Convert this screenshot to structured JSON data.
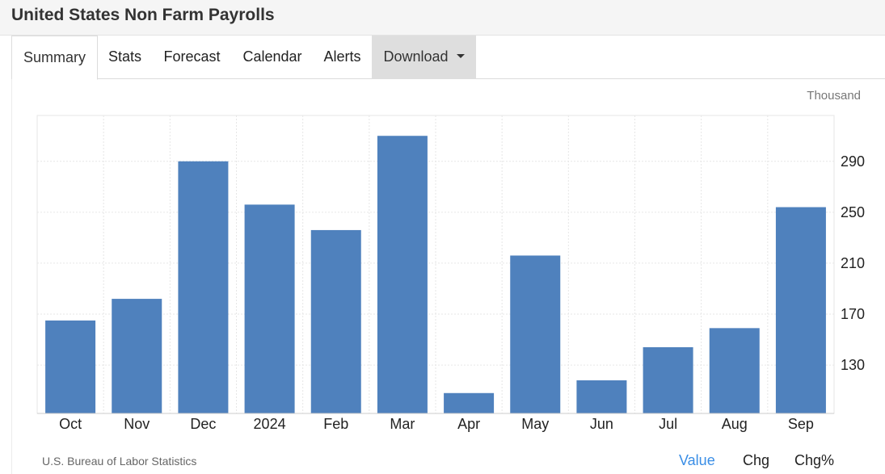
{
  "header": {
    "title": "United States Non Farm Payrolls"
  },
  "tabs": [
    {
      "label": "Summary"
    },
    {
      "label": "Stats"
    },
    {
      "label": "Forecast"
    },
    {
      "label": "Calendar"
    },
    {
      "label": "Alerts"
    },
    {
      "label": "Download"
    }
  ],
  "unit_label": "Thousand",
  "source": "U.S. Bureau of Labor Statistics",
  "toggles": [
    {
      "label": "Value",
      "selected": true
    },
    {
      "label": "Chg",
      "selected": false
    },
    {
      "label": "Chg%",
      "selected": false
    }
  ],
  "colors": {
    "bar": "#4f81bd",
    "grid": "#e6e6e6",
    "axis": "#cccccc",
    "selected_toggle": "#3a8ee6"
  },
  "chart_data": {
    "type": "bar",
    "categories": [
      "Oct",
      "Nov",
      "Dec",
      "2024",
      "Feb",
      "Mar",
      "Apr",
      "May",
      "Jun",
      "Jul",
      "Aug",
      "Sep"
    ],
    "values": [
      165,
      182,
      290,
      256,
      236,
      310,
      108,
      216,
      118,
      144,
      159,
      254
    ],
    "ylim": [
      92,
      326
    ],
    "yticks": [
      130,
      170,
      210,
      250,
      290
    ],
    "y_axis_side": "right",
    "grid": true,
    "title": "",
    "xlabel": "",
    "ylabel": "Thousand"
  }
}
